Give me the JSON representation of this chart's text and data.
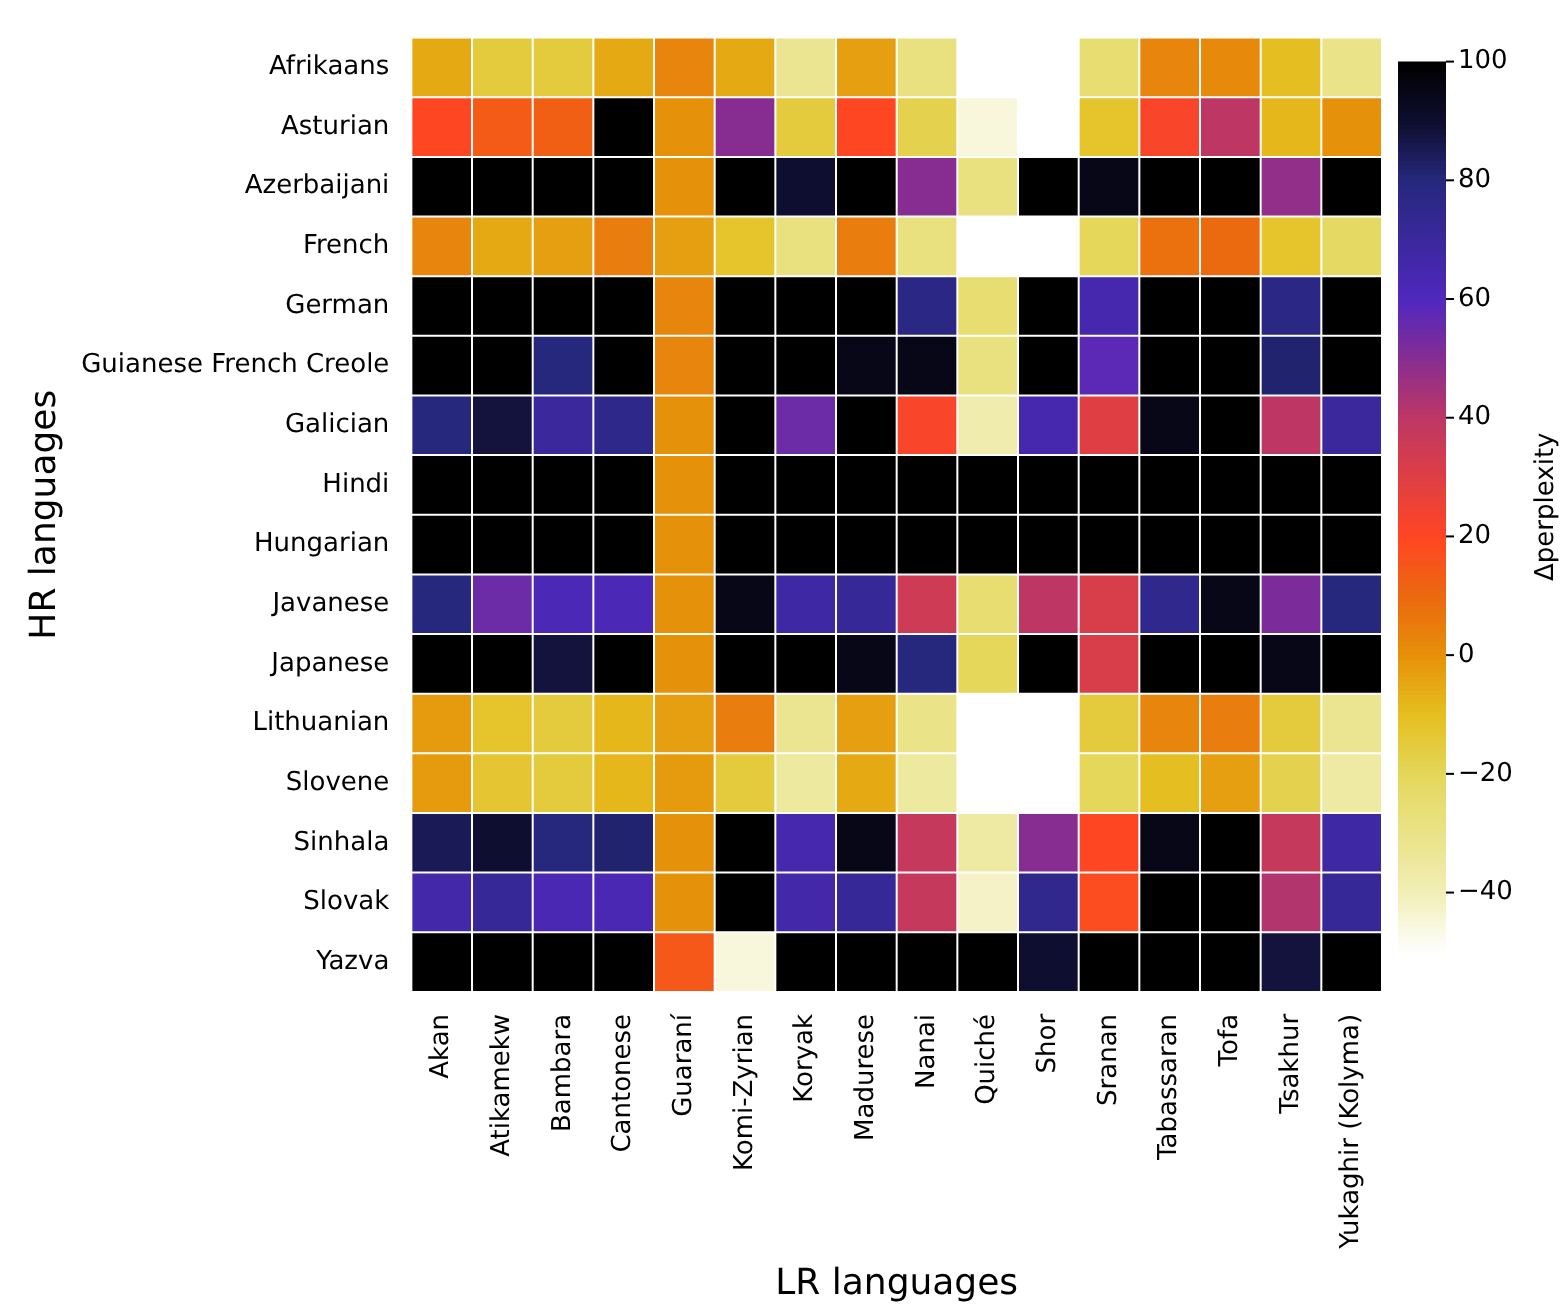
{
  "chart_data": {
    "type": "heatmap",
    "xlabel": "LR languages",
    "ylabel": "HR languages",
    "clabel": "Δperplexity",
    "categories": [
      "Akan",
      "Atikamekw",
      "Bambara",
      "Cantonese",
      "Guaraní",
      "Komi-Zyrian",
      "Koryak",
      "Madurese",
      "Nanai",
      "Quiché",
      "Shor",
      "Sranan",
      "Tabassaran",
      "Tofa",
      "Tsakhur",
      "Yukaghir (Kolyma)"
    ],
    "y_categories": [
      "Afrikaans",
      "Asturian",
      "Azerbaijani",
      "French",
      "German",
      "Guianese French Creole",
      "Galician",
      "Hindi",
      "Hungarian",
      "Javanese",
      "Japanese",
      "Lithuanian",
      "Slovene",
      "Sinhala",
      "Slovak",
      "Yazva"
    ],
    "cells": [
      [
        -5,
        -15,
        -15,
        -5,
        3,
        -5,
        -32,
        -3,
        -28,
        null,
        null,
        -25,
        3,
        2,
        -10,
        -30
      ],
      [
        20,
        14,
        13,
        100,
        0,
        50,
        -15,
        20,
        -18,
        -45,
        -50,
        -12,
        22,
        40,
        -8,
        0
      ],
      [
        100,
        100,
        100,
        100,
        0,
        100,
        90,
        100,
        50,
        -28,
        100,
        95,
        100,
        100,
        48,
        100
      ],
      [
        3,
        -5,
        -3,
        5,
        -3,
        -12,
        -28,
        5,
        -28,
        null,
        null,
        -20,
        8,
        10,
        -12,
        -22
      ],
      [
        100,
        100,
        100,
        100,
        3,
        100,
        100,
        100,
        78,
        -25,
        100,
        65,
        100,
        100,
        78,
        100
      ],
      [
        100,
        100,
        80,
        100,
        3,
        100,
        100,
        95,
        95,
        -28,
        100,
        58,
        100,
        100,
        82,
        100
      ],
      [
        80,
        88,
        70,
        76,
        0,
        100,
        55,
        100,
        22,
        -38,
        65,
        30,
        95,
        100,
        40,
        70
      ],
      [
        100,
        100,
        100,
        100,
        0,
        100,
        100,
        100,
        100,
        100,
        100,
        100,
        100,
        100,
        100,
        100
      ],
      [
        100,
        100,
        100,
        100,
        0,
        100,
        100,
        100,
        100,
        100,
        100,
        100,
        100,
        100,
        100,
        100
      ],
      [
        80,
        55,
        62,
        62,
        0,
        95,
        68,
        72,
        35,
        -25,
        40,
        32,
        75,
        95,
        52,
        80
      ],
      [
        100,
        100,
        88,
        100,
        0,
        100,
        100,
        95,
        80,
        -20,
        100,
        32,
        100,
        100,
        95,
        100
      ],
      [
        -2,
        -12,
        -15,
        -8,
        -3,
        5,
        -32,
        -3,
        -30,
        null,
        null,
        -15,
        3,
        5,
        -15,
        -32
      ],
      [
        -2,
        -13,
        -15,
        -8,
        -2,
        -15,
        -35,
        -5,
        -35,
        null,
        null,
        -20,
        -10,
        -3,
        -18,
        -36
      ],
      [
        85,
        90,
        80,
        82,
        0,
        100,
        65,
        95,
        38,
        -36,
        50,
        20,
        95,
        100,
        38,
        68
      ],
      [
        66,
        72,
        63,
        63,
        0,
        100,
        66,
        72,
        38,
        -42,
        75,
        18,
        100,
        100,
        42,
        72
      ],
      [
        100,
        100,
        100,
        100,
        15,
        -45,
        100,
        100,
        100,
        100,
        90,
        100,
        100,
        100,
        88,
        100
      ]
    ],
    "clim": [
      -50,
      100
    ],
    "cticks": [
      -40,
      -20,
      0,
      20,
      40,
      60,
      80,
      100
    ]
  }
}
